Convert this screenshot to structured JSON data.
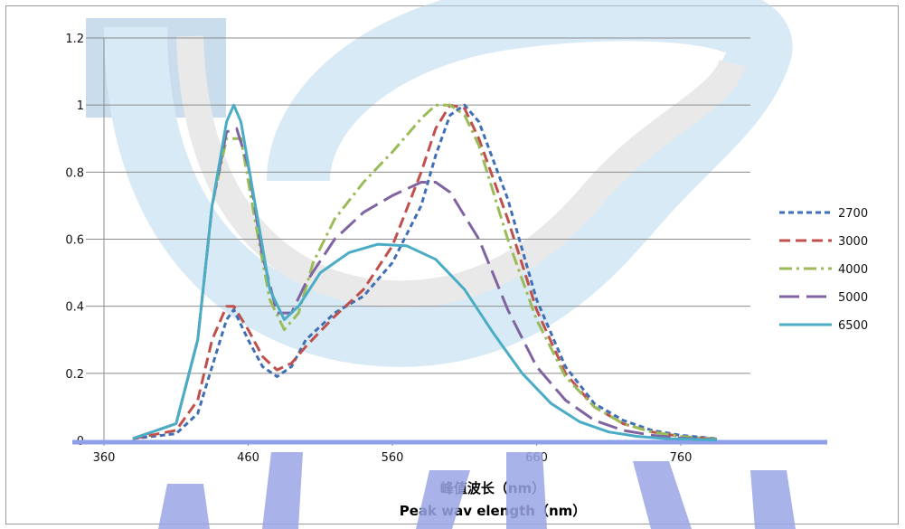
{
  "chart_data": {
    "type": "line",
    "title": "",
    "xlabel_cn": "峰值波长（nm）",
    "xlabel_en": "Peak wav elength（nm）",
    "ylabel": "",
    "xlim": [
      360,
      790
    ],
    "ylim": [
      0,
      1.2
    ],
    "x_ticks": [
      "360",
      "460",
      "560",
      "660",
      "760"
    ],
    "y_ticks": [
      "0",
      "0.2",
      "0.4",
      "0.6",
      "0.8",
      "1",
      "1.2"
    ],
    "grid": "horizontal",
    "legend_position": "right",
    "series": [
      {
        "name": "2700",
        "color": "#3f6fb5",
        "dash": "6,4",
        "points": [
          [
            380,
            0.005
          ],
          [
            410,
            0.02
          ],
          [
            425,
            0.08
          ],
          [
            435,
            0.22
          ],
          [
            445,
            0.36
          ],
          [
            450,
            0.39
          ],
          [
            460,
            0.3
          ],
          [
            470,
            0.22
          ],
          [
            480,
            0.19
          ],
          [
            490,
            0.22
          ],
          [
            500,
            0.3
          ],
          [
            520,
            0.38
          ],
          [
            540,
            0.43
          ],
          [
            560,
            0.53
          ],
          [
            580,
            0.7
          ],
          [
            590,
            0.85
          ],
          [
            600,
            0.97
          ],
          [
            610,
            1.0
          ],
          [
            620,
            0.95
          ],
          [
            640,
            0.72
          ],
          [
            660,
            0.42
          ],
          [
            680,
            0.22
          ],
          [
            700,
            0.11
          ],
          [
            720,
            0.06
          ],
          [
            740,
            0.03
          ],
          [
            760,
            0.015
          ],
          [
            785,
            0.005
          ]
        ]
      },
      {
        "name": "3000",
        "color": "#c0504d",
        "dash": "12,6",
        "points": [
          [
            380,
            0.005
          ],
          [
            410,
            0.03
          ],
          [
            425,
            0.12
          ],
          [
            435,
            0.3
          ],
          [
            445,
            0.4
          ],
          [
            450,
            0.4
          ],
          [
            460,
            0.33
          ],
          [
            470,
            0.25
          ],
          [
            480,
            0.21
          ],
          [
            490,
            0.23
          ],
          [
            500,
            0.28
          ],
          [
            520,
            0.37
          ],
          [
            540,
            0.45
          ],
          [
            560,
            0.58
          ],
          [
            580,
            0.8
          ],
          [
            590,
            0.93
          ],
          [
            600,
            1.0
          ],
          [
            610,
            0.99
          ],
          [
            620,
            0.9
          ],
          [
            640,
            0.66
          ],
          [
            660,
            0.39
          ],
          [
            680,
            0.2
          ],
          [
            700,
            0.1
          ],
          [
            720,
            0.05
          ],
          [
            740,
            0.025
          ],
          [
            760,
            0.012
          ],
          [
            785,
            0.004
          ]
        ]
      },
      {
        "name": "4000",
        "color": "#9bbb59",
        "dash": "14,5,3,5",
        "points": [
          [
            380,
            0.005
          ],
          [
            410,
            0.05
          ],
          [
            425,
            0.3
          ],
          [
            435,
            0.7
          ],
          [
            445,
            0.9
          ],
          [
            455,
            0.9
          ],
          [
            465,
            0.65
          ],
          [
            475,
            0.42
          ],
          [
            485,
            0.33
          ],
          [
            495,
            0.38
          ],
          [
            505,
            0.53
          ],
          [
            520,
            0.66
          ],
          [
            540,
            0.77
          ],
          [
            560,
            0.86
          ],
          [
            580,
            0.96
          ],
          [
            590,
            1.0
          ],
          [
            600,
            1.0
          ],
          [
            610,
            0.97
          ],
          [
            620,
            0.88
          ],
          [
            640,
            0.6
          ],
          [
            660,
            0.36
          ],
          [
            680,
            0.19
          ],
          [
            700,
            0.1
          ],
          [
            720,
            0.05
          ],
          [
            740,
            0.025
          ],
          [
            760,
            0.012
          ],
          [
            785,
            0.004
          ]
        ]
      },
      {
        "name": "5000",
        "color": "#8064a2",
        "dash": "22,8",
        "points": [
          [
            380,
            0.005
          ],
          [
            410,
            0.05
          ],
          [
            425,
            0.3
          ],
          [
            435,
            0.7
          ],
          [
            445,
            0.92
          ],
          [
            452,
            0.93
          ],
          [
            460,
            0.82
          ],
          [
            470,
            0.55
          ],
          [
            480,
            0.38
          ],
          [
            490,
            0.38
          ],
          [
            500,
            0.47
          ],
          [
            520,
            0.6
          ],
          [
            540,
            0.68
          ],
          [
            560,
            0.73
          ],
          [
            580,
            0.77
          ],
          [
            590,
            0.77
          ],
          [
            600,
            0.74
          ],
          [
            620,
            0.6
          ],
          [
            640,
            0.39
          ],
          [
            660,
            0.22
          ],
          [
            680,
            0.12
          ],
          [
            700,
            0.06
          ],
          [
            720,
            0.03
          ],
          [
            740,
            0.015
          ],
          [
            760,
            0.007
          ],
          [
            785,
            0.002
          ]
        ]
      },
      {
        "name": "6500",
        "color": "#4bacc6",
        "dash": "",
        "points": [
          [
            380,
            0.005
          ],
          [
            410,
            0.05
          ],
          [
            425,
            0.3
          ],
          [
            435,
            0.7
          ],
          [
            445,
            0.95
          ],
          [
            450,
            1.0
          ],
          [
            455,
            0.95
          ],
          [
            465,
            0.7
          ],
          [
            475,
            0.45
          ],
          [
            485,
            0.36
          ],
          [
            495,
            0.4
          ],
          [
            510,
            0.5
          ],
          [
            530,
            0.56
          ],
          [
            550,
            0.585
          ],
          [
            570,
            0.58
          ],
          [
            590,
            0.54
          ],
          [
            610,
            0.45
          ],
          [
            630,
            0.32
          ],
          [
            650,
            0.2
          ],
          [
            670,
            0.11
          ],
          [
            690,
            0.055
          ],
          [
            710,
            0.025
          ],
          [
            730,
            0.012
          ],
          [
            750,
            0.005
          ],
          [
            785,
            0.001
          ]
        ]
      }
    ]
  }
}
